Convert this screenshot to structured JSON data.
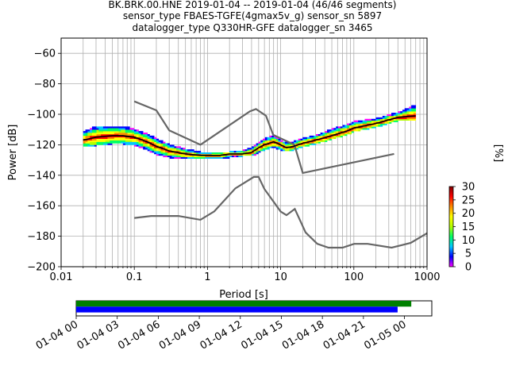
{
  "title": {
    "line1": "BK.BRK.00.HNE   2019-01-04 -- 2019-01-04  (46/46 segments)",
    "line2": "sensor_type FBAES-TGFE(4gmax5v_g) sensor_sn 5897",
    "line3": "datalogger_type Q330HR-GFE datalogger_sn 3465"
  },
  "chart_data": [
    {
      "type": "heatmap",
      "xlabel": "Period [s]",
      "ylabel": "Power [dB]",
      "xscale": "log",
      "xlim": [
        0.01,
        1000
      ],
      "ylim": [
        -200,
        -50
      ],
      "xticks": [
        0.01,
        0.1,
        1,
        10,
        100,
        1000
      ],
      "xtick_labels": [
        "0.01",
        "0.1",
        "1",
        "10",
        "100",
        "1000"
      ],
      "yticks": [
        -60,
        -80,
        -100,
        -120,
        -140,
        -160,
        -180,
        -200
      ],
      "ytick_labels": [
        "−60",
        "−80",
        "−100",
        "−120",
        "−140",
        "−160",
        "−180",
        "−200"
      ],
      "grid": true,
      "mode_curve": {
        "period": [
          0.02,
          0.03,
          0.05,
          0.07,
          0.1,
          0.15,
          0.2,
          0.3,
          0.5,
          0.8,
          1,
          1.5,
          2,
          3,
          4,
          5,
          6,
          7,
          8,
          10,
          12,
          15,
          20,
          30,
          50,
          80,
          100,
          200,
          400,
          700
        ],
        "power": [
          -117,
          -115,
          -114,
          -114,
          -115,
          -118,
          -121,
          -124,
          -126,
          -127,
          -127,
          -127,
          -126,
          -126,
          -125,
          -122,
          -120,
          -119,
          -118,
          -120,
          -122,
          -121,
          -119,
          -117,
          -114,
          -111,
          -109,
          -106,
          -102,
          -101
        ]
      },
      "pdf_band": {
        "period": [
          0.02,
          0.03,
          0.05,
          0.07,
          0.1,
          0.15,
          0.2,
          0.3,
          0.5,
          0.8,
          1,
          1.5,
          2,
          3,
          4,
          5,
          6,
          7,
          8,
          10,
          12,
          15,
          20,
          30,
          50,
          80,
          100,
          200,
          400,
          700
        ],
        "upper": [
          -112,
          -108,
          -108,
          -108,
          -110,
          -113,
          -116,
          -120,
          -123,
          -125,
          -125,
          -125,
          -125,
          -124,
          -122,
          -119,
          -116,
          -115,
          -114,
          -117,
          -119,
          -118,
          -116,
          -114,
          -110,
          -107,
          -105,
          -103,
          -99,
          -94
        ],
        "lower": [
          -121,
          -120,
          -119,
          -119,
          -120,
          -123,
          -126,
          -128,
          -129,
          -129,
          -129,
          -129,
          -128,
          -127,
          -127,
          -125,
          -123,
          -122,
          -121,
          -123,
          -124,
          -123,
          -121,
          -119,
          -116,
          -113,
          -111,
          -108,
          -104,
          -103
        ]
      },
      "noise_models": [
        {
          "period": [
            0.1,
            0.2,
            0.3,
            0.8,
            3.8,
            4.6,
            6.3,
            7.9,
            15.4,
            20,
            354.8
          ],
          "power": [
            -91.5,
            -97.4,
            -110.5,
            -120.0,
            -98.0,
            -96.5,
            -101.0,
            -113.5,
            -120.0,
            -138.5,
            -126.0
          ]
        },
        {
          "period": [
            0.1,
            0.17,
            0.4,
            0.8,
            1.24,
            2.4,
            4.3,
            5.0,
            6.0,
            10.0,
            12.0,
            15.6,
            21.9,
            31.6,
            45.0,
            70.0,
            101.0,
            154.0,
            328.0,
            600.0,
            1000.0
          ],
          "power": [
            -168.0,
            -166.7,
            -166.7,
            -169.2,
            -163.7,
            -148.6,
            -141.1,
            -141.1,
            -149.0,
            -163.8,
            -166.2,
            -162.1,
            -177.5,
            -185.0,
            -187.5,
            -187.5,
            -185.0,
            -185.0,
            -187.5,
            -184.4,
            -178.0
          ]
        }
      ],
      "colorbar": {
        "label": "[%]",
        "min": 0,
        "max": 30,
        "ticks": [
          0,
          5,
          10,
          15,
          20,
          25,
          30
        ],
        "colors": [
          "#ffffff",
          "#ff00ff",
          "#0000ff",
          "#00c8ff",
          "#00ff64",
          "#b4ff00",
          "#ffff00",
          "#ff8c00",
          "#ff0000",
          "#800000"
        ]
      }
    },
    {
      "type": "timeline",
      "xlim": [
        "2019-01-04 00:00",
        "2019-01-05 02:00"
      ],
      "xtick_labels": [
        "01-04 00",
        "01-04 03",
        "01-04 06",
        "01-04 09",
        "01-04 12",
        "01-04 15",
        "01-04 18",
        "01-04 21",
        "01-05 00"
      ],
      "bars": [
        {
          "start": "2019-01-04 00:00",
          "end": "2019-01-05 00:30",
          "color": "#008000"
        },
        {
          "start": "2019-01-04 00:00",
          "end": "2019-01-04 23:30",
          "color": "#0000ff"
        }
      ]
    }
  ]
}
